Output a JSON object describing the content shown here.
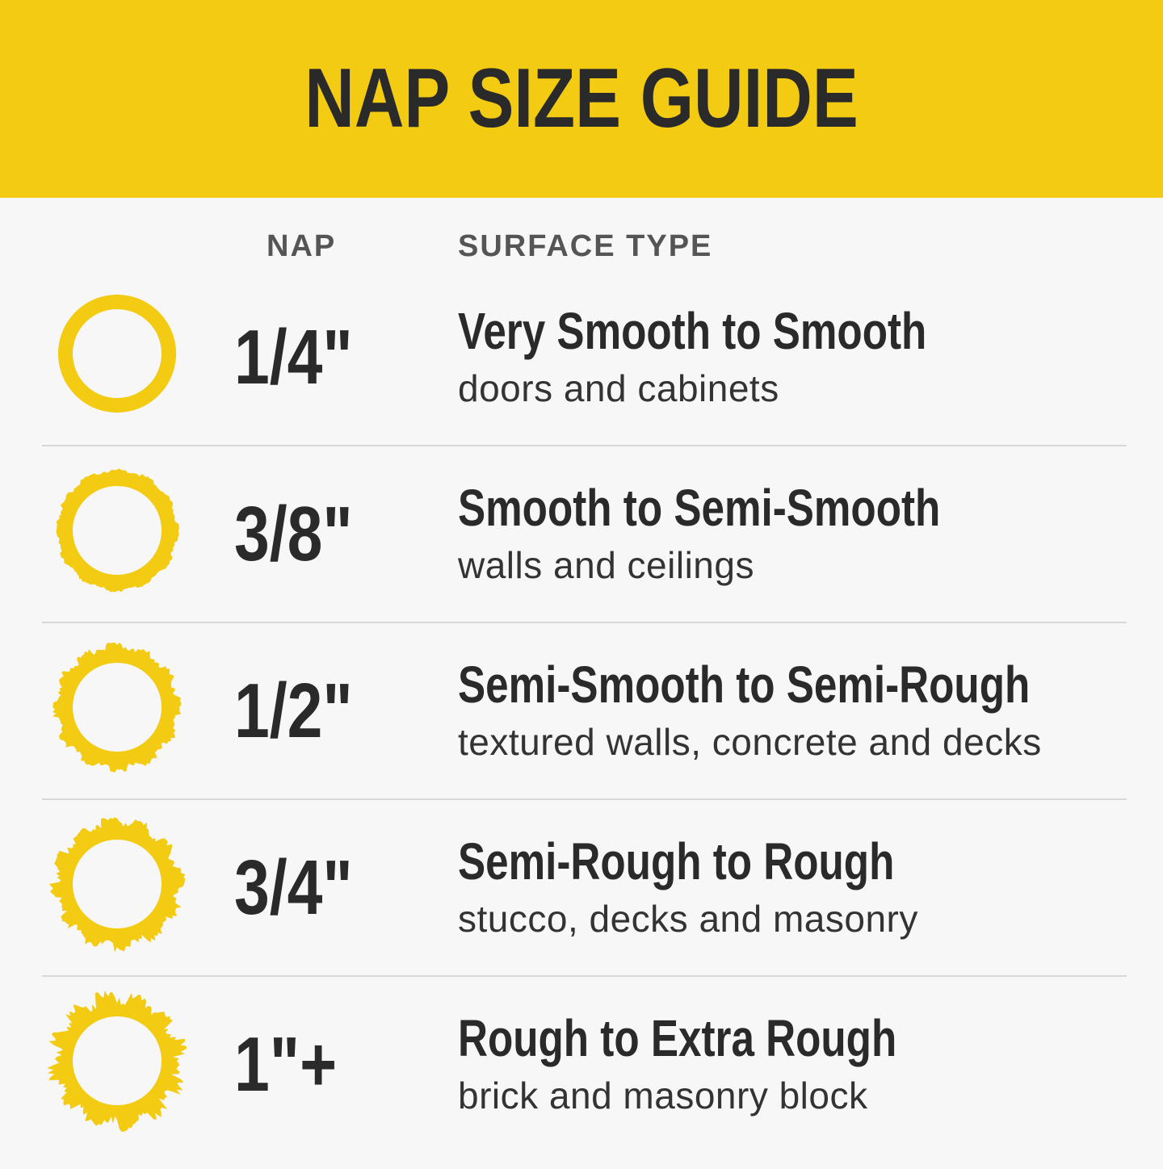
{
  "title": "NAP SIZE GUIDE",
  "columns": {
    "nap": "NAP",
    "surface": "SURFACE TYPE"
  },
  "colors": {
    "accent": "#f2cb12",
    "text": "#2a2a2a",
    "background": "#f7f7f7"
  },
  "rows": [
    {
      "nap": "1/4\"",
      "surface": "Very Smooth to Smooth",
      "use": "doors and cabinets",
      "roughness": 0
    },
    {
      "nap": "3/8\"",
      "surface": "Smooth to Semi-Smooth",
      "use": "walls and ceilings",
      "roughness": 1
    },
    {
      "nap": "1/2\"",
      "surface": "Semi-Smooth to Semi-Rough",
      "use": "textured walls, concrete and decks",
      "roughness": 2
    },
    {
      "nap": "3/4\"",
      "surface": "Semi-Rough to Rough",
      "use": "stucco, decks and masonry",
      "roughness": 3
    },
    {
      "nap": "1\"+",
      "surface": "Rough to Extra Rough",
      "use": "brick and masonry block",
      "roughness": 4
    }
  ]
}
